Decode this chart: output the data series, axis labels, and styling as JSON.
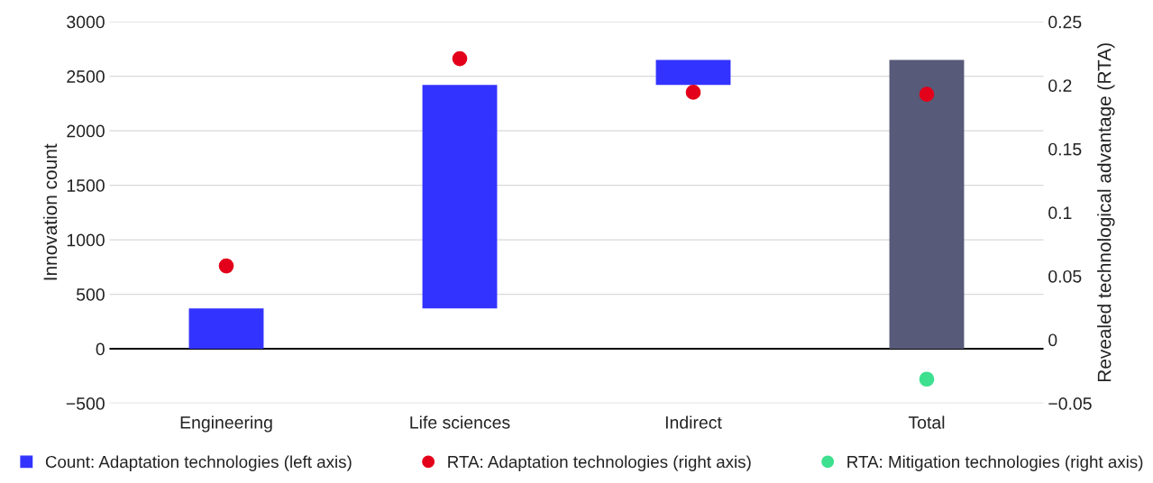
{
  "chart_data": {
    "type": "bar",
    "categories": [
      "Engineering",
      "Life sciences",
      "Indirect",
      "Total"
    ],
    "ylabel": "Innovation count",
    "y2label": "Revealed technological advantage (RTA)",
    "ylim": [
      -500,
      3000
    ],
    "yticks": [
      -500,
      0,
      500,
      1000,
      1500,
      2000,
      2500,
      3000
    ],
    "y2lim": [
      -0.05,
      0.25
    ],
    "y2ticks": [
      -0.05,
      0,
      0.05,
      0.1,
      0.15,
      0.2,
      0.25
    ],
    "grid": "y",
    "legend": "bottom",
    "ref_lines": [
      {
        "axis": "y",
        "value": 0,
        "color": "#000000"
      }
    ],
    "series": [
      {
        "name": "Count: Adaptation technologies (left axis)",
        "color": "#3333ff",
        "colors": [
          "#3333ff",
          "#3333ff",
          "#3333ff",
          "#575a78"
        ],
        "values": [
          370,
          2050,
          230,
          2650
        ],
        "base": [
          0,
          370,
          2420,
          0
        ]
      },
      {
        "name": "RTA: Adaptation technologies (right axis)",
        "type": "scatter",
        "axis": "y2",
        "color": "#e3001b",
        "marker": "circle",
        "values": [
          0.058,
          0.221,
          0.1945,
          0.193
        ]
      },
      {
        "name": "RTA: Mitigation technologies (right axis)",
        "type": "scatter",
        "axis": "y2",
        "color": "#3de08f",
        "marker": "circle",
        "values": [
          null,
          null,
          null,
          -0.031
        ]
      }
    ]
  }
}
